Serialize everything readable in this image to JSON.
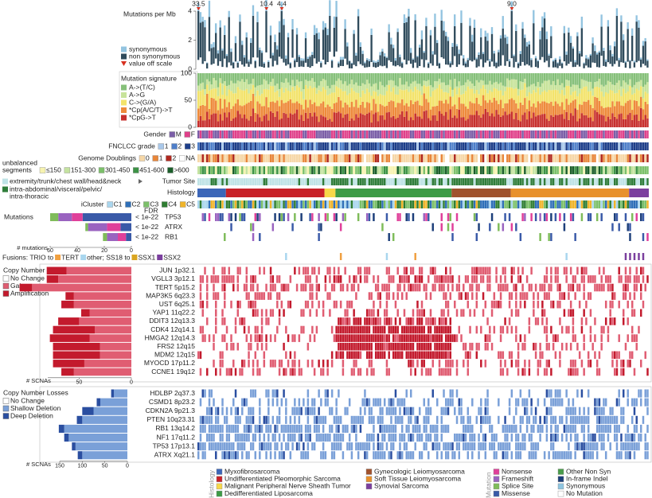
{
  "tmb": {
    "label": "Mutations per Mb",
    "ylim": [
      0,
      4
    ],
    "yticks": [
      0,
      2,
      4
    ],
    "off_scale": [
      33.5,
      10.4,
      4.4,
      {
        "value": 9,
        "label": "9.0"
      }
    ],
    "legend": [
      {
        "label": "synonymous",
        "color": "#93c4e0"
      },
      {
        "label": "non synonymous",
        "color": "#2f4b5c"
      },
      {
        "label": "value off scale",
        "color": "#d7301f"
      }
    ]
  },
  "signature": {
    "label": "Mutation signature",
    "ylim": [
      0,
      100
    ],
    "yticks": [
      0,
      50,
      100
    ],
    "legend": [
      {
        "label": "A->(T/C)",
        "color": "#86c07a"
      },
      {
        "label": "A->G",
        "color": "#c7e39a"
      },
      {
        "label": "C->(G/A)",
        "color": "#f3e36b"
      },
      {
        "label": "*Cp(A/C/T)->T",
        "color": "#ee8a3b"
      },
      {
        "label": "*CpG->T",
        "color": "#c7302e"
      }
    ]
  },
  "gender": {
    "label": "Gender",
    "legend": [
      {
        "label": "M",
        "color": "#7b5ea7"
      },
      {
        "label": "F",
        "color": "#e0408a"
      }
    ]
  },
  "grade": {
    "label": "FNCLCC grade",
    "legend": [
      {
        "label": "1",
        "color": "#a9c8ea"
      },
      {
        "label": "2",
        "color": "#4f7fc9"
      },
      {
        "label": "3",
        "color": "#1e3f8a"
      }
    ]
  },
  "doublings": {
    "label": "Genome Doublings",
    "legend": [
      {
        "label": "0",
        "color": "#f6d7a7"
      },
      {
        "label": "1",
        "color": "#e8863a"
      },
      {
        "label": "2",
        "color": "#b0281f"
      },
      {
        "label": "NA",
        "color": "#ffffff"
      }
    ]
  },
  "segments": {
    "label": [
      "unbalanced",
      "segments"
    ],
    "legend": [
      {
        "label": "≤150",
        "color": "#f7f3b0"
      },
      {
        "label": "151-300",
        "color": "#c5e3a0"
      },
      {
        "label": "301-450",
        "color": "#7cc06a"
      },
      {
        "label": "451-600",
        "color": "#3d9346"
      },
      {
        "label": ">600",
        "color": "#1b5e2a"
      }
    ]
  },
  "site": {
    "label": "Tumor Site",
    "legend": [
      {
        "label": [
          "extremity/trunk/chest wall/head&neck"
        ],
        "color": "#bfe3e6"
      },
      {
        "label": [
          "intra-abdominal/visceral/pelvic/",
          "intra-thoracic"
        ],
        "color": "#2f7d3a"
      }
    ]
  },
  "histology": {
    "label": "Histology",
    "legend_title": "Histology",
    "legend": [
      {
        "label": "Myxofibrosarcoma",
        "color": "#3c66b8"
      },
      {
        "label": "Undifferentiated Pleomorphic Sarcoma",
        "color": "#c82128"
      },
      {
        "label": "Malignant Peripheral Nerve Sheath Tumor",
        "color": "#f7d84a"
      },
      {
        "label": "Dedifferentiated Liposarcoma",
        "color": "#3d9b46"
      },
      {
        "label": "Gynecologic Leiomyosarcoma",
        "color": "#a0522d"
      },
      {
        "label": "Soft Tissue Leiomyosarcoma",
        "color": "#e8912c"
      },
      {
        "label": "Synovial Sarcoma",
        "color": "#7b3f9e"
      }
    ]
  },
  "icluster": {
    "label": "iCluster",
    "legend": [
      {
        "label": "C1",
        "color": "#a9d6ee"
      },
      {
        "label": "C2",
        "color": "#2f6fb8"
      },
      {
        "label": "C3",
        "color": "#7cc06a"
      },
      {
        "label": "C4",
        "color": "#2e7d32"
      },
      {
        "label": "C5",
        "color": "#f0b429"
      }
    ]
  },
  "mutations": {
    "label": "Mutations",
    "fdr_label": "FDR",
    "axis_label": "# mutations",
    "xlim": [
      0,
      60
    ],
    "xticks": [
      0,
      20,
      40,
      60
    ],
    "genes": [
      {
        "gene": "TP53",
        "fdr": "< 1e-22",
        "counts": [
          36,
          8,
          10,
          6
        ]
      },
      {
        "gene": "ATRX",
        "fdr": "< 1e-22",
        "counts": [
          8,
          10,
          14,
          2
        ]
      },
      {
        "gene": "RB1",
        "fdr": "< 1e-22",
        "counts": [
          4,
          6,
          8,
          3
        ]
      }
    ],
    "legend_title": "Mutation",
    "legend": [
      {
        "label": "Nonsense",
        "color": "#e0409a"
      },
      {
        "label": "Frameshift",
        "color": "#9a63c0"
      },
      {
        "label": "Splice Site",
        "color": "#7fbc5a"
      },
      {
        "label": "Missense",
        "color": "#3a5aa8"
      },
      {
        "label": "Other Non Syn",
        "color": "#4a9c4a"
      },
      {
        "label": "In-frame Indel",
        "color": "#1d3f7a"
      },
      {
        "label": "Synonymous",
        "color": "#8ec5e0"
      },
      {
        "label": "No Mutation",
        "color": "#ffffff"
      }
    ]
  },
  "fusions": {
    "parts": [
      {
        "label": "Fusions: TRIO to"
      },
      {
        "label": "TERT",
        "color": "#f0a040"
      },
      {
        "label": "other; SS18 to",
        "color": "#a9d6ee"
      },
      {
        "label": "SSX1",
        "color": "#d9a520"
      },
      {
        "label": "SSX2",
        "color": "#7b3f9e"
      }
    ]
  },
  "gains": {
    "title": "Copy Number Gains",
    "axis_label": "# SCNAs",
    "xlim": [
      0,
      80
    ],
    "xticks": [
      0,
      50
    ],
    "legend": [
      {
        "label": "No Change",
        "color": "#ffffff"
      },
      {
        "label": "Gain",
        "color": "#e05d72"
      },
      {
        "label": "Amplification",
        "color": "#c31a2d"
      }
    ],
    "rows": [
      {
        "gene": "JUN 1p32.1",
        "gain": 62,
        "amp": 19
      },
      {
        "gene": "VGLL3 3p12.1",
        "gain": 70,
        "amp": 11
      },
      {
        "gene": "TERT 5p15.2",
        "gain": 95,
        "amp": 12
      },
      {
        "gene": "MAP3K5 6q23.3",
        "gain": 55,
        "amp": 8
      },
      {
        "gene": "UST 6q25.1",
        "gain": 55,
        "amp": 12
      },
      {
        "gene": "YAP1 11q22.2",
        "gain": 40,
        "amp": 8
      },
      {
        "gene": "DDIT3 12q13.3",
        "gain": 50,
        "amp": 20
      },
      {
        "gene": "CDK4 12q14.1",
        "gain": 35,
        "amp": 40
      },
      {
        "gene": "HMGA2 12q14.3",
        "gain": 40,
        "amp": 38
      },
      {
        "gene": "FRS2 12q15",
        "gain": 30,
        "amp": 45
      },
      {
        "gene": "MDM2 12q15",
        "gain": 30,
        "amp": 45
      },
      {
        "gene": "MYOCD 17p11.2",
        "gain": 45,
        "amp": 30
      },
      {
        "gene": "CCNE1 19q12",
        "gain": 55,
        "amp": 12
      }
    ]
  },
  "losses": {
    "title": "Copy Number Losses",
    "axis_label": "# SCNAs",
    "xlim": [
      0,
      150
    ],
    "xticks": [
      0,
      50,
      100,
      150
    ],
    "legend": [
      {
        "label": "No Change",
        "color": "#ffffff"
      },
      {
        "label": "Shallow Deletion",
        "color": "#7aa0d8"
      },
      {
        "label": "Deep Deletion",
        "color": "#2a4ea0"
      }
    ],
    "rows": [
      {
        "gene": "HDLBP 2q37.3",
        "shallow": 30,
        "deep": 6
      },
      {
        "gene": "CSMD1 8p23.2",
        "shallow": 60,
        "deep": 8
      },
      {
        "gene": "CDKN2A 9p21.3",
        "shallow": 75,
        "deep": 25
      },
      {
        "gene": "PTEN 10q23.31",
        "shallow": 100,
        "deep": 12
      },
      {
        "gene": "RB1 13q14.2",
        "shallow": 140,
        "deep": 12
      },
      {
        "gene": "NF1 17q11.2",
        "shallow": 130,
        "deep": 10
      },
      {
        "gene": "TP53 17p13.1",
        "shallow": 115,
        "deep": 8
      },
      {
        "gene": "ATRX Xq21.1",
        "shallow": 100,
        "deep": 10
      }
    ]
  }
}
